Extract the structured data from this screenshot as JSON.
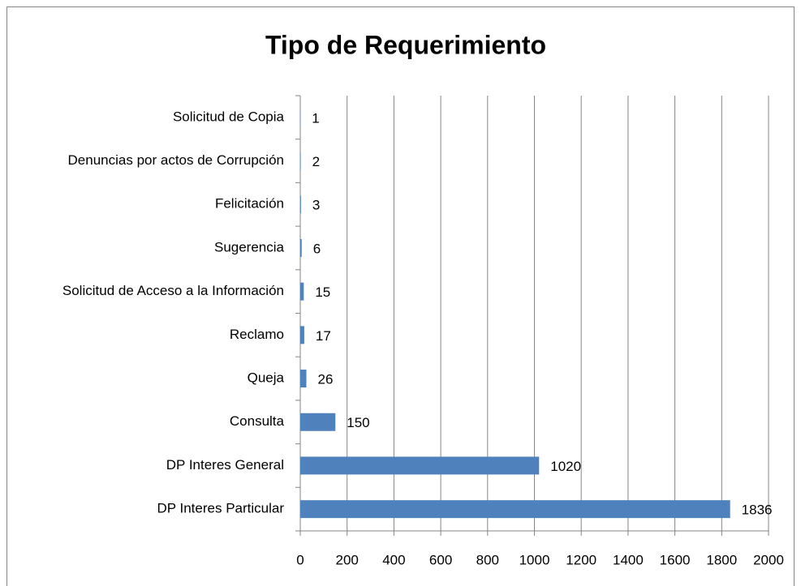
{
  "chart_data": {
    "type": "bar",
    "orientation": "horizontal",
    "title": "Tipo de Requerimiento",
    "categories": [
      "Solicitud de Copia",
      "Denuncias por actos de Corrupción",
      "Felicitación",
      "Sugerencia",
      "Solicitud de Acceso a la Información",
      "Reclamo",
      "Queja",
      "Consulta",
      "DP Interes General",
      "DP Interes Particular"
    ],
    "values": [
      1,
      2,
      3,
      6,
      15,
      17,
      26,
      150,
      1020,
      1836
    ],
    "color": "#4f81bd",
    "xlim": [
      0,
      2000
    ],
    "xticks": [
      0,
      200,
      400,
      600,
      800,
      1000,
      1200,
      1400,
      1600,
      1800,
      2000
    ],
    "grid": true
  }
}
